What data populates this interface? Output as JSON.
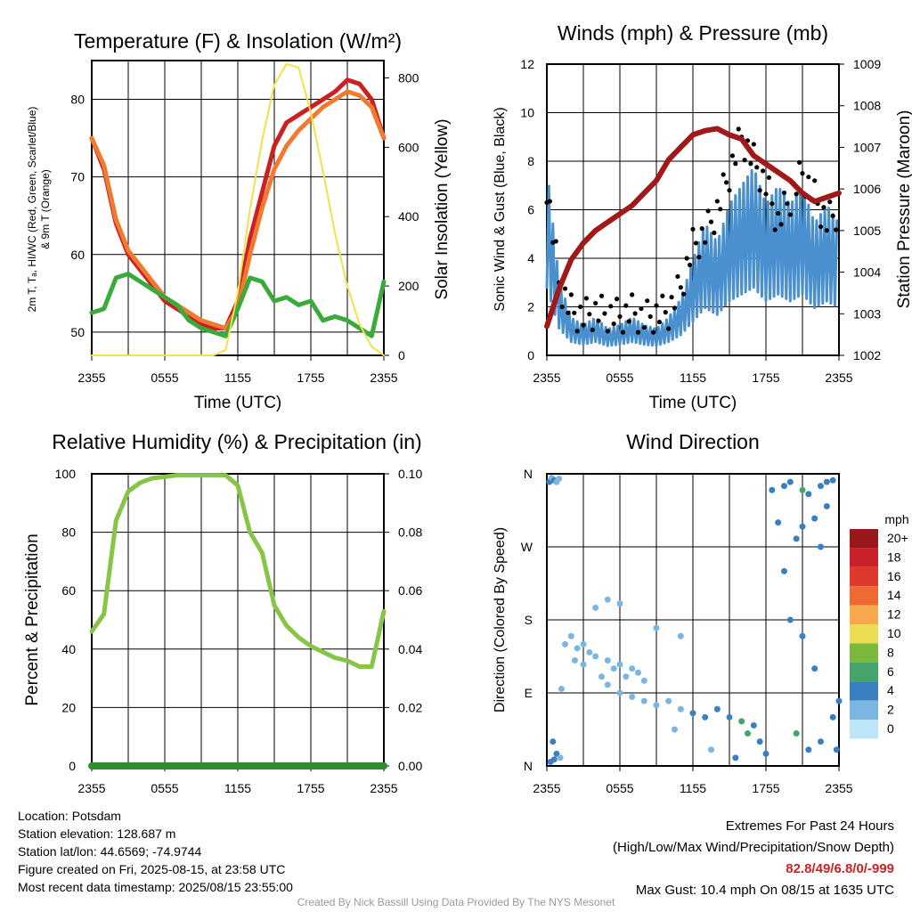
{
  "chart_data": [
    {
      "id": "temp",
      "type": "line",
      "title": "Temperature (F) & Insolation (W/m²)",
      "xlabel": "Time (UTC)",
      "ylabel_lines": [
        "2m T, Tₐ, HI/WC (Red, Green, Scarlet/Blue)",
        "& 9m T (Orange)"
      ],
      "y2label": "Solar Insolation (Yellow)",
      "x_ticks": [
        "2355",
        "0555",
        "1155",
        "1755",
        "2355"
      ],
      "ylim": [
        47,
        85
      ],
      "y_ticks": [
        50,
        60,
        70,
        80
      ],
      "y2lim": [
        0,
        850
      ],
      "y2_ticks": [
        0,
        200,
        400,
        600,
        800
      ],
      "x_hours": [
        0,
        1,
        2,
        3,
        4,
        5,
        6,
        7,
        8,
        9,
        10,
        11,
        12,
        13,
        14,
        15,
        16,
        17,
        18,
        19,
        20,
        21,
        22,
        23,
        24
      ],
      "series": [
        {
          "key": "2m-temperature",
          "color": "#cc1f1f",
          "values": [
            75,
            71,
            64,
            60,
            58,
            56,
            54,
            53,
            52,
            51,
            50.5,
            50.5,
            54,
            62,
            68,
            74,
            77,
            78,
            79,
            80,
            81,
            82.5,
            82,
            80,
            75
          ]
        },
        {
          "key": "9m-temperature",
          "color": "#f07a30",
          "values": [
            75,
            71.5,
            64.5,
            60.5,
            58.5,
            56.5,
            54.5,
            53.5,
            52.5,
            51.5,
            51,
            50.5,
            53,
            60,
            66,
            71,
            74,
            76,
            77.5,
            79,
            80,
            81,
            80.5,
            79,
            75
          ]
        },
        {
          "key": "dewpoint",
          "color": "#3aaa3a",
          "values": [
            52.5,
            53,
            57,
            57.5,
            56.5,
            55.5,
            54.5,
            53.5,
            51.5,
            50.5,
            50,
            49.5,
            53,
            57,
            56.5,
            54,
            54.5,
            53.5,
            54,
            51.5,
            52,
            51.5,
            50.5,
            49.5,
            56.5
          ]
        },
        {
          "key": "solar-insolation",
          "color": "#f5e04a",
          "axis": "right",
          "values": [
            0,
            0,
            0,
            0,
            0,
            0,
            0,
            0,
            0,
            0,
            0,
            15,
            180,
            420,
            620,
            780,
            840,
            830,
            700,
            530,
            350,
            200,
            90,
            25,
            0
          ]
        }
      ]
    },
    {
      "id": "wind",
      "type": "line",
      "title": "Winds (mph) & Pressure (mb)",
      "xlabel": "Time (UTC)",
      "ylabel": "Sonic Wind & Gust (Blue, Black)",
      "y2label": "Station Pressure (Maroon)",
      "x_ticks": [
        "2355",
        "0555",
        "1155",
        "1755",
        "2355"
      ],
      "ylim": [
        0,
        12
      ],
      "y_ticks": [
        0,
        2,
        4,
        6,
        8,
        10,
        12
      ],
      "y2lim": [
        1002,
        1009
      ],
      "y2_ticks": [
        1002,
        1003,
        1004,
        1005,
        1006,
        1007,
        1008,
        1009
      ],
      "x_hours": [
        0,
        1,
        2,
        3,
        4,
        5,
        6,
        7,
        8,
        9,
        10,
        11,
        12,
        13,
        14,
        15,
        16,
        17,
        18,
        19,
        20,
        21,
        22,
        23,
        24
      ],
      "series": [
        {
          "key": "wind-speed",
          "color": "#4a90cf",
          "values": [
            5,
            2,
            1,
            0.8,
            1,
            0.7,
            0.8,
            1,
            0.8,
            0.7,
            1,
            1.5,
            2.5,
            3.5,
            3,
            4,
            4.5,
            5,
            4,
            4.5,
            4,
            4.5,
            3.5,
            4,
            3.5
          ]
        },
        {
          "key": "gust",
          "color": "#000000",
          "values": [
            7,
            3,
            1.8,
            1.6,
            1.8,
            1.7,
            1.6,
            1.8,
            1.5,
            1.7,
            1.8,
            2.8,
            4.5,
            5,
            6,
            7.5,
            9,
            8,
            7,
            5.5,
            6.5,
            7.5,
            6.5,
            5.5,
            6
          ]
        },
        {
          "key": "pressure",
          "color": "#a01818",
          "axis": "right",
          "values": [
            1002.7,
            1003.6,
            1004.3,
            1004.7,
            1005,
            1005.2,
            1005.4,
            1005.6,
            1005.9,
            1006.2,
            1006.7,
            1007,
            1007.3,
            1007.4,
            1007.45,
            1007.3,
            1007.2,
            1006.8,
            1006.6,
            1006.4,
            1006.2,
            1005.9,
            1005.7,
            1005.8,
            1005.9
          ]
        }
      ]
    },
    {
      "id": "rh",
      "type": "line",
      "title": "Relative Humidity (%) & Precipitation (in)",
      "ylabel": "Percent & Precipitation",
      "x_ticks": [
        "2355",
        "0555",
        "1155",
        "1755",
        "2355"
      ],
      "ylim": [
        0,
        100
      ],
      "y_ticks": [
        0,
        20,
        40,
        60,
        80,
        100
      ],
      "y2lim": [
        0,
        0.1
      ],
      "y2_ticks": [
        "0.00",
        "0.02",
        "0.04",
        "0.06",
        "0.08",
        "0.10"
      ],
      "x_hours": [
        0,
        1,
        2,
        3,
        4,
        5,
        6,
        7,
        8,
        9,
        10,
        11,
        12,
        13,
        14,
        15,
        16,
        17,
        18,
        19,
        20,
        21,
        22,
        23,
        24
      ],
      "series": [
        {
          "key": "relative-humidity",
          "color": "#86c546",
          "values": [
            46,
            52,
            84,
            94,
            97,
            98.5,
            99,
            99.5,
            99.5,
            99.5,
            99.5,
            99.5,
            96,
            80,
            73,
            55,
            48,
            44,
            41,
            39,
            37,
            36,
            34,
            34,
            53
          ]
        },
        {
          "key": "precipitation",
          "color": "#2f8f2f",
          "axis": "right",
          "values": [
            0,
            0,
            0,
            0,
            0,
            0,
            0,
            0,
            0,
            0,
            0,
            0,
            0,
            0,
            0,
            0,
            0,
            0,
            0,
            0,
            0,
            0,
            0,
            0,
            0
          ]
        }
      ]
    },
    {
      "id": "direction",
      "type": "scatter",
      "title": "Wind Direction",
      "ylabel": "Direction (Colored By Speed)",
      "x_ticks": [
        "2355",
        "0555",
        "1155",
        "1755",
        "2355"
      ],
      "y_ticks": [
        "N",
        "E",
        "S",
        "W",
        "N"
      ],
      "legend_title": "mph",
      "legend_labels": [
        "20+",
        "18",
        "16",
        "14",
        "12",
        "10",
        "8",
        "6",
        "4",
        "2",
        "0"
      ],
      "legend_colors": [
        "#99181b",
        "#c8212a",
        "#dd3a2b",
        "#ef6a32",
        "#f8a84c",
        "#ebde55",
        "#7ab93e",
        "#44a46c",
        "#3a7fc0",
        "#7bb6e0",
        "#bfe6f8"
      ],
      "cluster_points": [
        [
          0.2,
          350,
          4
        ],
        [
          0.4,
          355,
          2
        ],
        [
          0.6,
          352,
          3
        ],
        [
          1.0,
          354,
          2
        ],
        [
          0.3,
          5,
          4
        ],
        [
          0.8,
          350,
          2
        ],
        [
          0.5,
          30,
          4
        ],
        [
          0.8,
          15,
          4
        ],
        [
          1.1,
          10,
          2
        ],
        [
          0.6,
          8,
          3
        ],
        [
          1.2,
          95,
          2
        ],
        [
          2.0,
          160,
          2
        ],
        [
          1.5,
          150,
          1
        ],
        [
          2.5,
          145,
          1
        ],
        [
          3.0,
          150,
          2
        ],
        [
          3.5,
          140,
          2
        ],
        [
          2.3,
          130,
          1
        ],
        [
          3.0,
          125,
          2
        ],
        [
          4.0,
          135,
          2
        ],
        [
          5.0,
          130,
          2
        ],
        [
          5.5,
          120,
          2
        ],
        [
          6.0,
          125,
          1
        ],
        [
          7.0,
          120,
          2
        ],
        [
          7.5,
          115,
          2
        ],
        [
          8.0,
          105,
          1
        ],
        [
          4.5,
          110,
          1
        ],
        [
          5.0,
          100,
          1
        ],
        [
          6.5,
          110,
          2
        ],
        [
          6.0,
          90,
          2
        ],
        [
          7.0,
          85,
          2
        ],
        [
          8.0,
          80,
          2
        ],
        [
          9.0,
          75,
          1
        ],
        [
          10.0,
          80,
          2
        ],
        [
          11.0,
          70,
          2
        ],
        [
          12.0,
          65,
          3
        ],
        [
          13.0,
          60,
          3
        ],
        [
          14.0,
          70,
          4
        ],
        [
          15.0,
          60,
          4
        ],
        [
          16.0,
          55,
          5
        ],
        [
          17.0,
          50,
          4
        ],
        [
          16.5,
          40,
          6
        ],
        [
          17.5,
          30,
          4
        ],
        [
          18.0,
          15,
          4
        ],
        [
          15.5,
          10,
          3
        ],
        [
          13.5,
          20,
          2
        ],
        [
          10.5,
          45,
          2
        ],
        [
          6.0,
          200,
          2
        ],
        [
          5.0,
          205,
          1
        ],
        [
          4.0,
          195,
          1
        ],
        [
          9.0,
          170,
          2
        ],
        [
          11.0,
          160,
          2
        ],
        [
          18.5,
          340,
          4
        ],
        [
          19.5,
          345,
          4
        ],
        [
          20.0,
          350,
          3
        ],
        [
          21.0,
          340,
          5
        ],
        [
          21.5,
          335,
          4
        ],
        [
          22.5,
          345,
          4
        ],
        [
          23.0,
          350,
          3
        ],
        [
          23.5,
          352,
          4
        ],
        [
          19.0,
          300,
          4
        ],
        [
          20.5,
          280,
          3
        ],
        [
          21.0,
          295,
          4
        ],
        [
          22.0,
          305,
          4
        ],
        [
          22.5,
          270,
          3
        ],
        [
          23.0,
          320,
          4
        ],
        [
          19.5,
          240,
          3
        ],
        [
          20.0,
          180,
          3
        ],
        [
          21.0,
          160,
          4
        ],
        [
          22.0,
          120,
          3
        ],
        [
          23.5,
          60,
          4
        ],
        [
          24.0,
          80,
          4
        ],
        [
          20.5,
          40,
          5
        ],
        [
          21.5,
          20,
          4
        ],
        [
          22.5,
          30,
          4
        ],
        [
          23.8,
          20,
          3
        ]
      ]
    }
  ],
  "info_left": [
    "Location: Potsdam",
    "Station elevation: 128.687 m",
    "Station lat/lon: 44.6569; -74.9744",
    "Figure created on Fri, 2025-08-15, at 23:58 UTC",
    "Most recent data timestamp: 2025/08/15 23:55:00"
  ],
  "extremes": {
    "title": "Extremes For Past 24 Hours",
    "subtitle": "(High/Low/Max Wind/Precipitation/Snow Depth)",
    "values": "82.8/49/6.8/0/-999",
    "max_gust": "Max Gust: 10.4 mph On 08/15 at 1635 UTC"
  },
  "credit": "Created By Nick Bassill Using Data Provided By The NYS Mesonet"
}
